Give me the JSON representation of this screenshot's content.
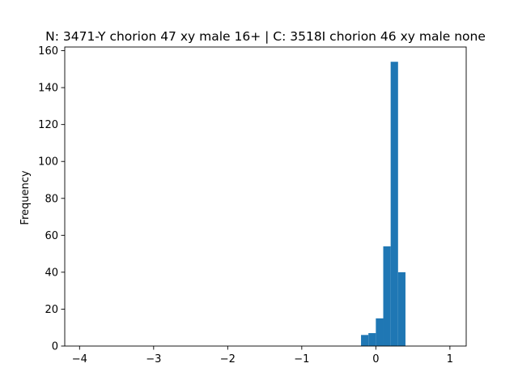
{
  "chart_data": {
    "type": "bar",
    "title": "N: 3471-Y chorion 47 xy male 16+ | C: 3518I chorion 46 xy male none",
    "xlabel": "",
    "ylabel": "Frequency",
    "xlim": [
      -4.2,
      1.22
    ],
    "ylim": [
      0,
      162
    ],
    "xticks": [
      -4,
      -3,
      -2,
      -1,
      0,
      1
    ],
    "xtick_labels": [
      "−4",
      "−3",
      "−2",
      "−1",
      "0",
      "1"
    ],
    "yticks": [
      0,
      20,
      40,
      60,
      80,
      100,
      120,
      140,
      160
    ],
    "ytick_labels": [
      "0",
      "20",
      "40",
      "60",
      "80",
      "100",
      "120",
      "140",
      "160"
    ],
    "bins": [
      {
        "x0": -0.2,
        "x1": -0.1,
        "count": 6
      },
      {
        "x0": -0.1,
        "x1": 0.0,
        "count": 7
      },
      {
        "x0": 0.0,
        "x1": 0.1,
        "count": 15
      },
      {
        "x0": 0.1,
        "x1": 0.2,
        "count": 54
      },
      {
        "x0": 0.2,
        "x1": 0.3,
        "count": 154
      },
      {
        "x0": 0.3,
        "x1": 0.4,
        "count": 40
      }
    ],
    "bar_color": "#1f77b4",
    "grid": false,
    "legend": "none"
  }
}
